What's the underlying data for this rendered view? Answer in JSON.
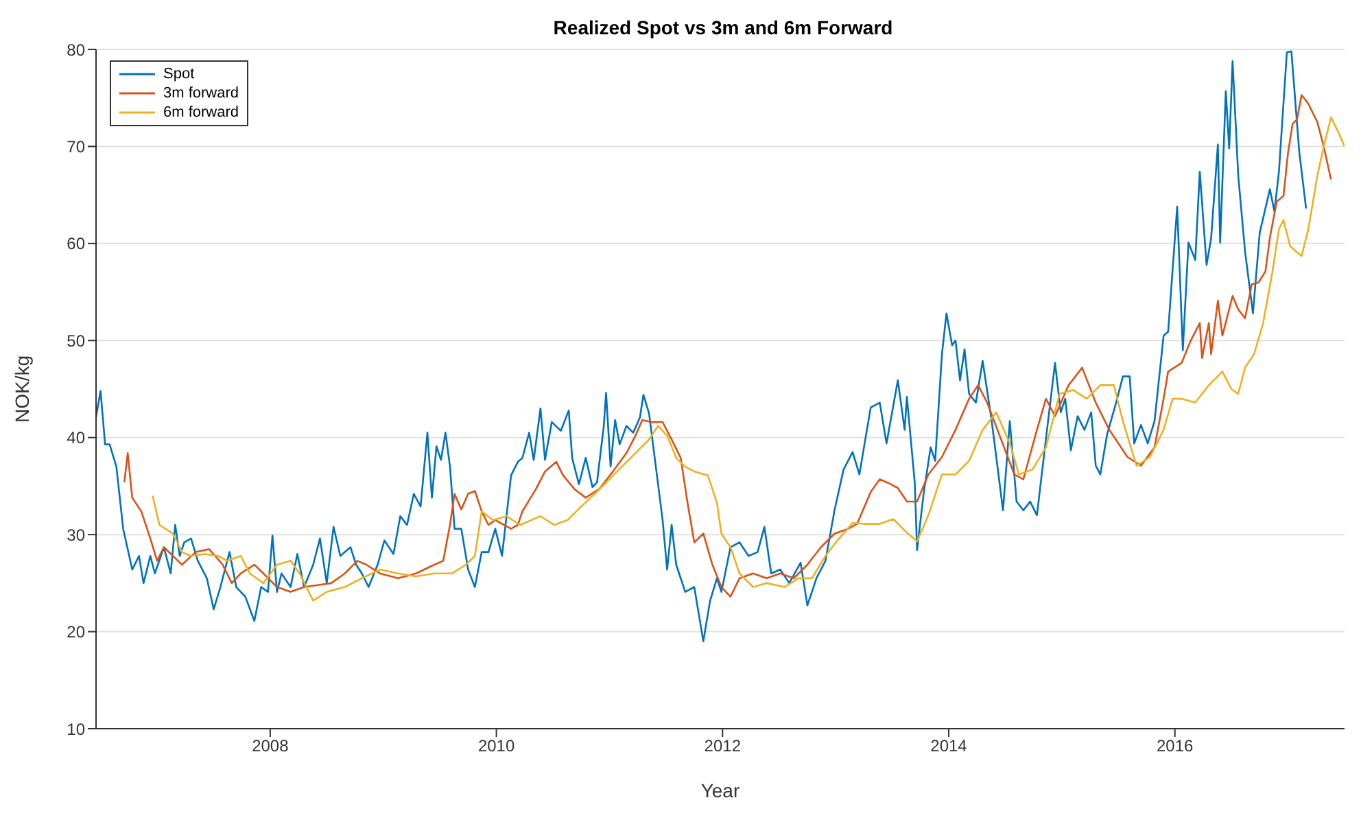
{
  "chart_data": {
    "type": "line",
    "title": "Realized Spot vs 3m and 6m Forward",
    "xlabel": "Year",
    "ylabel": "NOK/kg",
    "xlim": [
      2006.46,
      2017.5
    ],
    "xticks": [
      2008,
      2010,
      2012,
      2014,
      2016
    ],
    "ylim": [
      10,
      80
    ],
    "yticks": [
      10,
      20,
      30,
      40,
      50,
      60,
      70,
      80
    ],
    "grid": "y",
    "legend": "top left",
    "marker": "none",
    "line_style": "solid",
    "series": [
      {
        "name": "Spot",
        "color": "#0072bd",
        "x": [
          2006.46,
          2006.5,
          2006.54,
          2006.58,
          2006.64,
          2006.7,
          2006.78,
          2006.84,
          2006.88,
          2006.94,
          2006.98,
          2007.06,
          2007.12,
          2007.16,
          2007.2,
          2007.24,
          2007.3,
          2007.36,
          2007.44,
          2007.5,
          2007.56,
          2007.64,
          2007.7,
          2007.78,
          2007.86,
          2007.92,
          2007.98,
          2008.02,
          2008.06,
          2008.1,
          2008.18,
          2008.24,
          2008.3,
          2008.38,
          2008.44,
          2008.5,
          2008.56,
          2008.62,
          2008.71,
          2008.76,
          2008.81,
          2008.87,
          2008.95,
          2009.01,
          2009.09,
          2009.15,
          2009.21,
          2009.27,
          2009.33,
          2009.39,
          2009.43,
          2009.47,
          2009.51,
          2009.55,
          2009.59,
          2009.63,
          2009.69,
          2009.75,
          2009.81,
          2009.87,
          2009.93,
          2009.99,
          2010.05,
          2010.13,
          2010.19,
          2010.23,
          2010.29,
          2010.33,
          2010.39,
          2010.43,
          2010.49,
          2010.57,
          2010.64,
          2010.67,
          2010.73,
          2010.79,
          2010.85,
          2010.89,
          2010.95,
          2010.97,
          2011.01,
          2011.05,
          2011.09,
          2011.15,
          2011.21,
          2011.27,
          2011.3,
          2011.35,
          2011.41,
          2011.47,
          2011.51,
          2011.55,
          2011.59,
          2011.67,
          2011.75,
          2011.83,
          2011.89,
          2011.95,
          2011.99,
          2012.07,
          2012.15,
          2012.23,
          2012.31,
          2012.37,
          2012.43,
          2012.51,
          2012.59,
          2012.69,
          2012.75,
          2012.83,
          2012.91,
          2012.99,
          2013.07,
          2013.15,
          2013.21,
          2013.31,
          2013.39,
          2013.45,
          2013.55,
          2013.61,
          2013.63,
          2013.7,
          2013.72,
          2013.78,
          2013.84,
          2013.88,
          2013.94,
          2013.98,
          2014.03,
          2014.06,
          2014.1,
          2014.14,
          2014.18,
          2014.24,
          2014.3,
          2014.38,
          2014.48,
          2014.54,
          2014.6,
          2014.66,
          2014.72,
          2014.78,
          2014.86,
          2014.94,
          2014.99,
          2015.03,
          2015.08,
          2015.14,
          2015.2,
          2015.26,
          2015.3,
          2015.34,
          2015.4,
          2015.48,
          2015.54,
          2015.6,
          2015.64,
          2015.7,
          2015.76,
          2015.82,
          2015.9,
          2015.94,
          2016.02,
          2016.07,
          2016.12,
          2016.18,
          2016.22,
          2016.28,
          2016.32,
          2016.38,
          2016.4,
          2016.45,
          2016.48,
          2016.51,
          2016.56,
          2016.62,
          2016.69,
          2016.75,
          2016.84,
          2016.88,
          2016.92,
          2016.99,
          2017.03,
          2017.1,
          2017.16
        ],
        "values": [
          42.1,
          44.8,
          39.3,
          39.3,
          37,
          30.6,
          26.4,
          27.8,
          25,
          27.8,
          26,
          28.7,
          26,
          31,
          27.8,
          29.2,
          29.6,
          27.3,
          25.5,
          22.3,
          24.6,
          28.2,
          24.6,
          23.6,
          21.1,
          24.6,
          24.1,
          29.9,
          24.1,
          26,
          24.6,
          28,
          24.6,
          26.9,
          29.6,
          25,
          30.8,
          27.8,
          28.7,
          26.9,
          26,
          24.6,
          26.9,
          29.4,
          28,
          31.9,
          31,
          34.2,
          32.9,
          40.5,
          33.8,
          39.1,
          37.7,
          40.5,
          37,
          30.6,
          30.6,
          26.4,
          24.6,
          28.2,
          28.2,
          30.6,
          27.8,
          36.1,
          37.5,
          37.9,
          40.5,
          37.7,
          43,
          37.7,
          41.6,
          40.7,
          42.8,
          37.9,
          35.2,
          37.9,
          34.9,
          35.4,
          41.2,
          44.6,
          37,
          41.8,
          39.3,
          41.2,
          40.5,
          42.1,
          44.4,
          42.5,
          37,
          31.5,
          26.4,
          31,
          26.9,
          24.1,
          24.6,
          19,
          23.2,
          25.5,
          24.1,
          28.7,
          29.2,
          27.8,
          28.2,
          30.8,
          26,
          26.4,
          25,
          27.1,
          22.7,
          25.5,
          27.3,
          32.5,
          36.7,
          38.5,
          36.2,
          43.1,
          43.6,
          39.4,
          45.9,
          40.8,
          44.2,
          35.3,
          28.4,
          34.4,
          39,
          37.6,
          48.6,
          52.8,
          49.5,
          50,
          45.9,
          49.1,
          44.5,
          43.6,
          47.9,
          41.7,
          32.5,
          41.7,
          33.4,
          32.5,
          33.4,
          32,
          39.9,
          47.7,
          42.6,
          44,
          38.7,
          42.2,
          40.8,
          42.6,
          37.1,
          36.2,
          40.3,
          43.6,
          46.3,
          46.3,
          39.4,
          41.3,
          39.4,
          41.7,
          50.5,
          50.9,
          63.8,
          49,
          60.1,
          58.3,
          67.4,
          57.8,
          60.5,
          70.2,
          60.1,
          75.7,
          69.8,
          78.8,
          67,
          59.2,
          52.8,
          61.1,
          65.6,
          63.3,
          67.4,
          79.7,
          79.8,
          69.4,
          63.6
        ]
      },
      {
        "name": "3m forward",
        "color": "#d95319",
        "x": [
          2006.71,
          2006.74,
          2006.78,
          2006.86,
          2006.94,
          2007.0,
          2007.06,
          2007.14,
          2007.22,
          2007.34,
          2007.46,
          2007.58,
          2007.66,
          2007.74,
          2007.86,
          2007.94,
          2008.06,
          2008.18,
          2008.3,
          2008.42,
          2008.54,
          2008.66,
          2008.77,
          2008.85,
          2008.97,
          2009.13,
          2009.29,
          2009.45,
          2009.53,
          2009.59,
          2009.63,
          2009.69,
          2009.75,
          2009.81,
          2009.87,
          2009.93,
          2009.99,
          2010.13,
          2010.19,
          2010.23,
          2010.35,
          2010.43,
          2010.53,
          2010.59,
          2010.69,
          2010.79,
          2010.91,
          2011.03,
          2011.15,
          2011.23,
          2011.29,
          2011.37,
          2011.47,
          2011.55,
          2011.63,
          2011.69,
          2011.75,
          2011.83,
          2011.91,
          2011.99,
          2012.07,
          2012.15,
          2012.27,
          2012.39,
          2012.51,
          2012.63,
          2012.75,
          2012.87,
          2012.99,
          2013.11,
          2013.19,
          2013.31,
          2013.39,
          2013.47,
          2013.55,
          2013.63,
          2013.72,
          2013.82,
          2013.94,
          2014.06,
          2014.18,
          2014.26,
          2014.34,
          2014.46,
          2014.58,
          2014.66,
          2014.78,
          2014.86,
          2014.94,
          2015.06,
          2015.18,
          2015.3,
          2015.42,
          2015.58,
          2015.7,
          2015.82,
          2015.9,
          2015.94,
          2016.06,
          2016.14,
          2016.22,
          2016.24,
          2016.3,
          2016.32,
          2016.38,
          2016.42,
          2016.51,
          2016.56,
          2016.62,
          2016.68,
          2016.74,
          2016.8,
          2016.84,
          2016.9,
          2016.96,
          2017.0,
          2017.04,
          2017.08,
          2017.12,
          2017.18,
          2017.26,
          2017.32,
          2017.38
        ],
        "values": [
          35.4,
          38.4,
          33.8,
          32.4,
          29.6,
          27.3,
          28.7,
          27.8,
          26.9,
          28.2,
          28.5,
          26.9,
          25,
          26,
          26.9,
          26,
          24.6,
          24.1,
          24.6,
          24.8,
          25,
          26,
          27.3,
          26.9,
          26,
          25.5,
          26,
          26.9,
          27.3,
          31,
          34.2,
          32.6,
          34.2,
          34.5,
          32.4,
          31,
          31.5,
          30.6,
          31,
          32.4,
          34.7,
          36.5,
          37.5,
          36.1,
          34.7,
          33.8,
          34.7,
          36.5,
          38.4,
          40.2,
          41.8,
          41.6,
          41.6,
          39.8,
          37.9,
          33.3,
          29.2,
          30.1,
          26.9,
          24.6,
          23.6,
          25.5,
          26,
          25.5,
          26,
          25.5,
          26.9,
          28.7,
          30.1,
          30.6,
          31.1,
          34.4,
          35.7,
          35.3,
          34.8,
          33.4,
          33.4,
          36.2,
          38,
          40.8,
          44,
          45.4,
          43.6,
          39.9,
          36.2,
          35.7,
          40.8,
          44,
          42.2,
          45.4,
          47.2,
          43.6,
          40.8,
          38,
          37.1,
          39,
          44,
          46.8,
          47.7,
          50,
          51.8,
          48.2,
          51.8,
          48.6,
          54.1,
          50.5,
          54.6,
          53.2,
          52.3,
          55.8,
          56,
          57.1,
          60.6,
          64.3,
          64.9,
          69.3,
          72.3,
          72.8,
          75.3,
          74.4,
          72.5,
          69.8,
          66.6
        ]
      },
      {
        "name": "6m forward",
        "color": "#edb120",
        "x": [
          2006.96,
          2007.02,
          2007.14,
          2007.22,
          2007.3,
          2007.42,
          2007.54,
          2007.62,
          2007.74,
          2007.82,
          2007.94,
          2008.06,
          2008.18,
          2008.26,
          2008.38,
          2008.5,
          2008.66,
          2008.81,
          2008.97,
          2009.13,
          2009.29,
          2009.45,
          2009.61,
          2009.73,
          2009.81,
          2009.87,
          2009.97,
          2010.09,
          2010.21,
          2010.39,
          2010.51,
          2010.63,
          2010.75,
          2010.87,
          2010.99,
          2011.11,
          2011.23,
          2011.35,
          2011.43,
          2011.51,
          2011.59,
          2011.67,
          2011.75,
          2011.87,
          2011.95,
          2011.99,
          2012.07,
          2012.15,
          2012.27,
          2012.39,
          2012.55,
          2012.67,
          2012.79,
          2012.91,
          2013.03,
          2013.15,
          2013.27,
          2013.39,
          2013.51,
          2013.63,
          2013.72,
          2013.82,
          2013.94,
          2014.06,
          2014.18,
          2014.3,
          2014.42,
          2014.54,
          2014.62,
          2014.74,
          2014.86,
          2014.98,
          2015.1,
          2015.22,
          2015.34,
          2015.46,
          2015.54,
          2015.66,
          2015.78,
          2015.9,
          2015.98,
          2016.06,
          2016.18,
          2016.3,
          2016.42,
          2016.5,
          2016.56,
          2016.62,
          2016.7,
          2016.78,
          2016.86,
          2016.92,
          2016.96,
          2017.02,
          2017.12,
          2017.18,
          2017.26,
          2017.32,
          2017.38,
          2017.44,
          2017.5
        ],
        "values": [
          34,
          31,
          30.1,
          28.2,
          27.8,
          28,
          27.8,
          27.3,
          27.8,
          26,
          25,
          26.9,
          27.3,
          26,
          23.2,
          24.1,
          24.6,
          25.5,
          26.4,
          26,
          25.7,
          26,
          26,
          26.9,
          27.8,
          32.4,
          31.5,
          31.9,
          31,
          31.9,
          31,
          31.5,
          32.9,
          34.2,
          35.6,
          37,
          38.4,
          39.8,
          41.2,
          40.2,
          37.9,
          37,
          36.5,
          36.1,
          33.3,
          30.1,
          28.7,
          26,
          24.6,
          25,
          24.6,
          25.5,
          25.5,
          27.8,
          29.6,
          31.2,
          31.1,
          31.1,
          31.6,
          30.2,
          29.3,
          32,
          36.2,
          36.2,
          37.6,
          40.8,
          42.6,
          39.4,
          36.2,
          36.7,
          39,
          44.5,
          44.9,
          44,
          45.4,
          45.4,
          41.7,
          37.1,
          38,
          40.8,
          44,
          44,
          43.6,
          45.4,
          46.8,
          45,
          44.5,
          47.2,
          48.6,
          51.8,
          56.9,
          61.5,
          62.4,
          59.7,
          58.7,
          61.5,
          67,
          70.2,
          73,
          71.6,
          70
        ]
      }
    ]
  }
}
